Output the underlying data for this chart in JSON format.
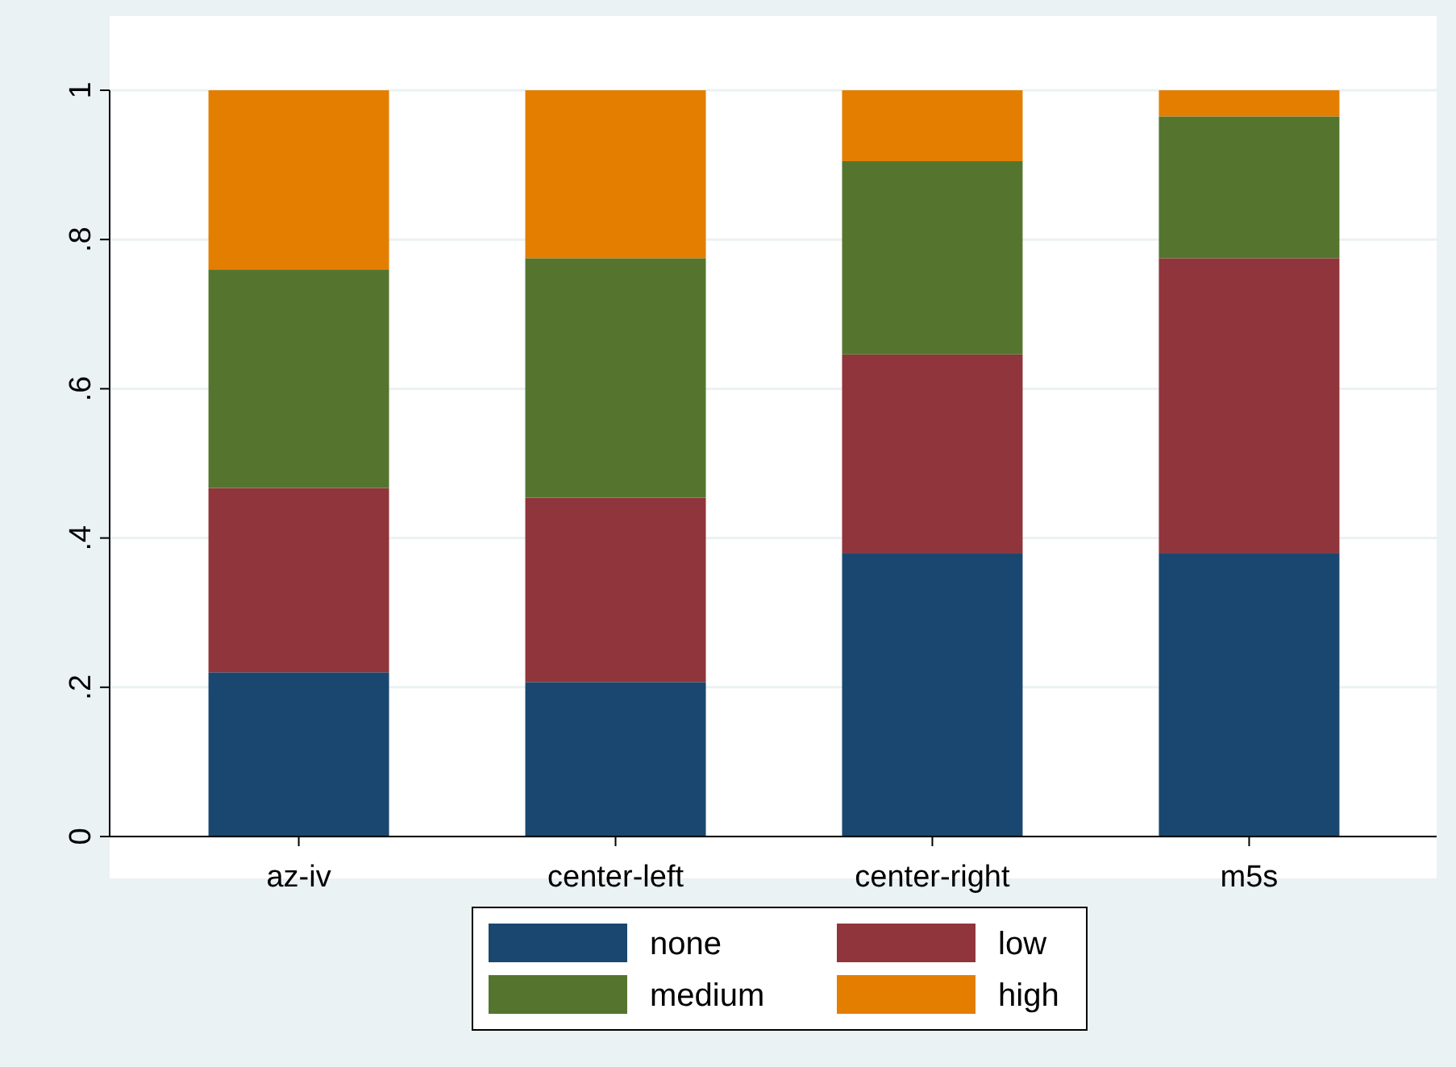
{
  "chart_data": {
    "type": "bar",
    "stacked": true,
    "categories": [
      "az-iv",
      "center-left",
      "center-right",
      "m5s"
    ],
    "series": [
      {
        "name": "none",
        "color": "#1a476f",
        "values": [
          0.22,
          0.207,
          0.38,
          0.38
        ]
      },
      {
        "name": "low",
        "color": "#90353b",
        "values": [
          0.247,
          0.247,
          0.266,
          0.395
        ]
      },
      {
        "name": "medium",
        "color": "#55752f",
        "values": [
          0.293,
          0.321,
          0.259,
          0.19
        ]
      },
      {
        "name": "high",
        "color": "#e37e00",
        "values": [
          0.24,
          0.225,
          0.095,
          0.035
        ]
      }
    ],
    "ylim": [
      0,
      1
    ],
    "yticks": [
      0,
      {
        "value": 0.2,
        "label": ".2"
      },
      {
        "value": 0.4,
        "label": ".4"
      },
      {
        "value": 0.6,
        "label": ".6"
      },
      {
        "value": 0.8,
        "label": ".8"
      },
      1
    ],
    "grid": "y",
    "legend": "bottom"
  }
}
